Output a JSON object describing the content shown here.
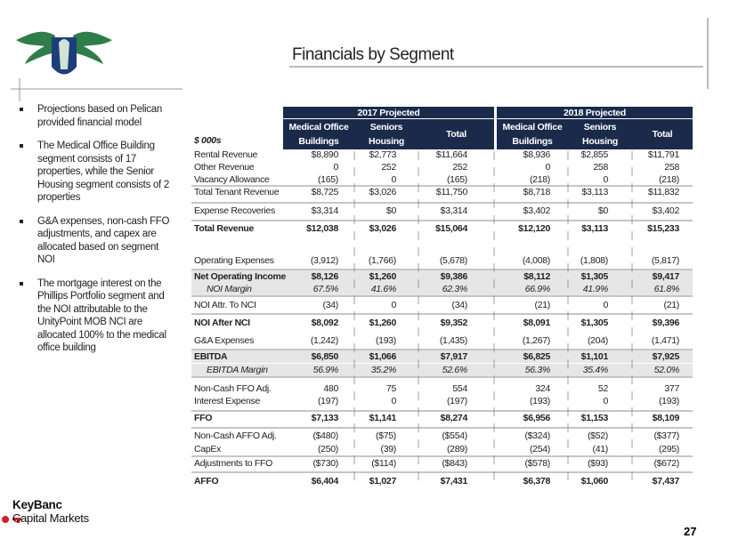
{
  "header": {
    "title": "Financials by Segment"
  },
  "bullets": [
    "Projections based on Pelican provided financial model",
    "The Medical Office Building segment consists of 17 properties, while the Senior Housing segment consists of 2 properties",
    "G&A expenses, non-cash FFO adjustments, and capex are allocated based on segment NOI",
    "The mortgage interest on the Phillips Portfolio segment and the NOI attributable to the UnityPoint MOB NCI are allocated 100% to the medical office building"
  ],
  "table": {
    "unit_label": "$ 000s",
    "group_headers": [
      "2017 Projected",
      "2018 Projected"
    ],
    "column_headers": [
      [
        "Medical Office",
        "Buildings"
      ],
      [
        "Seniors",
        "Housing"
      ],
      [
        "Total"
      ],
      [
        "Medical Office",
        "Buildings"
      ],
      [
        "Seniors",
        "Housing"
      ],
      [
        "Total"
      ]
    ],
    "rows": [
      {
        "label": "Rental Revenue",
        "values": [
          "$8,890",
          "$2,773",
          "$11,664",
          "$8,936",
          "$2,855",
          "$11,791"
        ]
      },
      {
        "label": "Other Revenue",
        "values": [
          "0",
          "252",
          "252",
          "0",
          "258",
          "258"
        ]
      },
      {
        "label": "Vacancy Allowance",
        "values": [
          "(165)",
          "0",
          "(165)",
          "(218)",
          "0",
          "(218)"
        ]
      },
      {
        "label": "Total Tenant Revenue",
        "values": [
          "$8,725",
          "$3,026",
          "$11,750",
          "$8,718",
          "$3,113",
          "$11,832"
        ]
      },
      {
        "label": "Expense Recoveries",
        "values": [
          "$3,314",
          "$0",
          "$3,314",
          "$3,402",
          "$0",
          "$3,402"
        ]
      },
      {
        "label": "Total Revenue",
        "values": [
          "$12,038",
          "$3,026",
          "$15,064",
          "$12,120",
          "$3,113",
          "$15,233"
        ],
        "bold": true
      },
      {
        "label": "Operating Expenses",
        "values": [
          "(3,912)",
          "(1,766)",
          "(5,678)",
          "(4,008)",
          "(1,808)",
          "(5,817)"
        ]
      },
      {
        "label": "Net Operating Income",
        "values": [
          "$8,126",
          "$1,260",
          "$9,386",
          "$8,112",
          "$1,305",
          "$9,417"
        ],
        "bold": true,
        "shaded": true
      },
      {
        "label": "NOI Margin",
        "values": [
          "67.5%",
          "41.6%",
          "62.3%",
          "66.9%",
          "41.9%",
          "61.8%"
        ],
        "italic": true,
        "shaded": true
      },
      {
        "label": "NOI Attr. To NCI",
        "values": [
          "(34)",
          "0",
          "(34)",
          "(21)",
          "0",
          "(21)"
        ]
      },
      {
        "label": "NOI After NCI",
        "values": [
          "$8,092",
          "$1,260",
          "$9,352",
          "$8,091",
          "$1,305",
          "$9,396"
        ],
        "bold": true
      },
      {
        "label": "G&A Expenses",
        "values": [
          "(1,242)",
          "(193)",
          "(1,435)",
          "(1,267)",
          "(204)",
          "(1,471)"
        ]
      },
      {
        "label": "EBITDA",
        "values": [
          "$6,850",
          "$1,066",
          "$7,917",
          "$6,825",
          "$1,101",
          "$7,925"
        ],
        "bold": true,
        "shaded": true
      },
      {
        "label": "EBITDA Margin",
        "values": [
          "56.9%",
          "35.2%",
          "52.6%",
          "56.3%",
          "35.4%",
          "52.0%"
        ],
        "italic": true,
        "shaded": true
      },
      {
        "label": "Non-Cash FFO Adj.",
        "values": [
          "480",
          "75",
          "554",
          "324",
          "52",
          "377"
        ]
      },
      {
        "label": "Interest Expense",
        "values": [
          "(197)",
          "0",
          "(197)",
          "(193)",
          "0",
          "(193)"
        ]
      },
      {
        "label": "FFO",
        "values": [
          "$7,133",
          "$1,141",
          "$8,274",
          "$6,956",
          "$1,153",
          "$8,109"
        ],
        "bold": true
      },
      {
        "label": "Non-Cash AFFO Adj.",
        "values": [
          "($480)",
          "($75)",
          "($554)",
          "($324)",
          "($52)",
          "($377)"
        ]
      },
      {
        "label": "CapEx",
        "values": [
          "(250)",
          "(39)",
          "(289)",
          "(254)",
          "(41)",
          "(295)"
        ]
      },
      {
        "label": "Adjustments to FFO",
        "values": [
          "($730)",
          "($114)",
          "($843)",
          "($578)",
          "($93)",
          "($672)"
        ]
      },
      {
        "label": "AFFO",
        "values": [
          "$6,404",
          "$1,027",
          "$7,431",
          "$6,378",
          "$1,060",
          "$7,437"
        ],
        "bold": true
      }
    ]
  },
  "footer": {
    "brand": "KeyBanc",
    "brand_sub": "Capital Markets",
    "page_number": "27"
  }
}
